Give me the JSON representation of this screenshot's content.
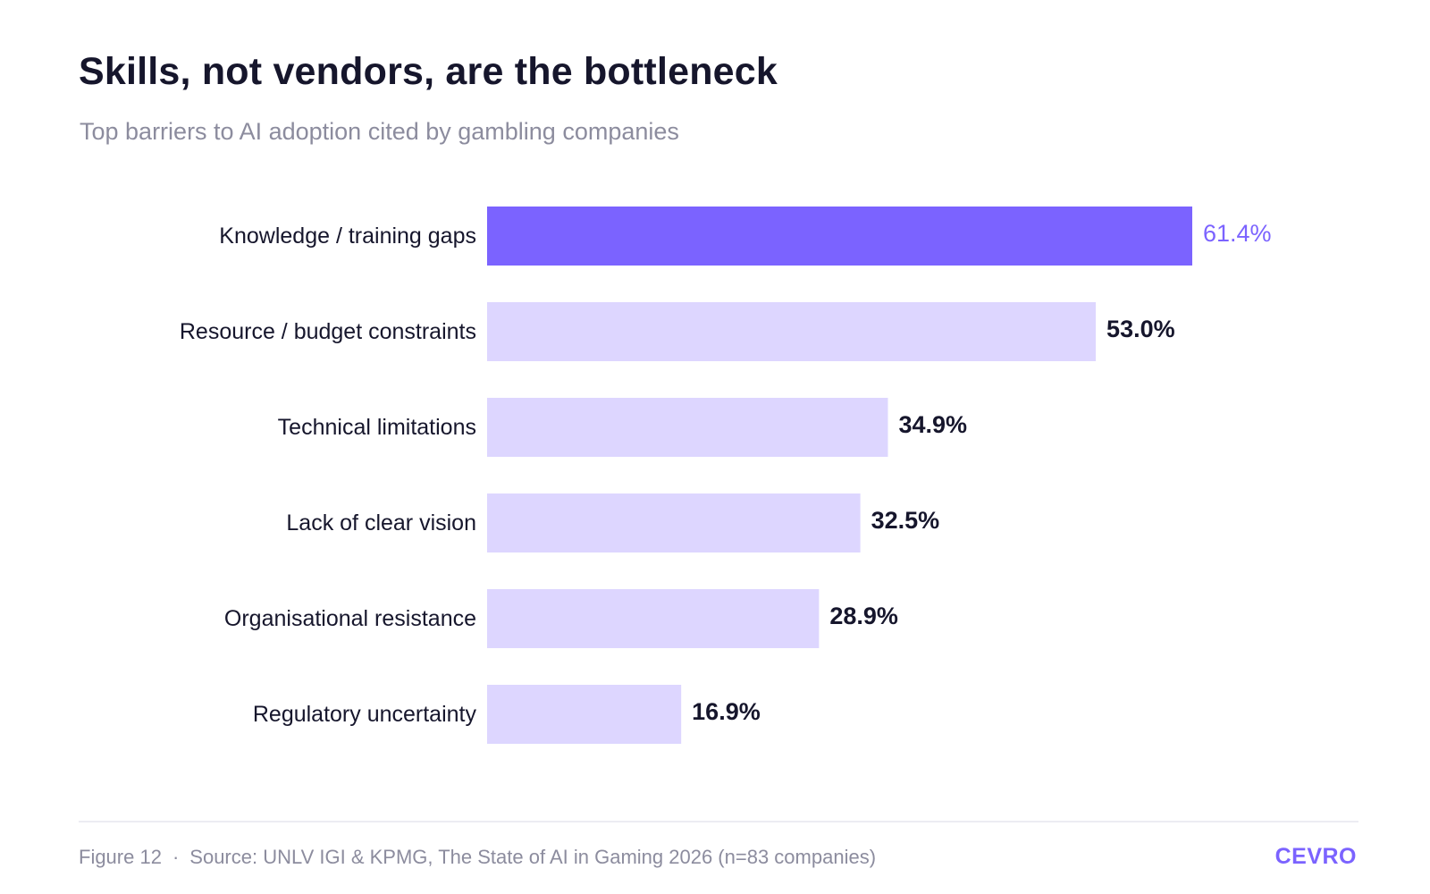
{
  "header": {
    "title": "Skills, not vendors, are the bottleneck",
    "subtitle": "Top barriers to AI adoption cited by gambling companies"
  },
  "footer": {
    "figure": "Figure 12",
    "separator": "·",
    "source": "Source: UNLV IGI & KPMG, The State of AI in Gaming 2026 (n=83 companies)",
    "brand": "CEVRO"
  },
  "colors": {
    "highlight_bar": "#7b63ff",
    "bar": "#ddd6ff",
    "highlight_label": "#7b63ff",
    "label": "#16162c"
  },
  "chart_data": {
    "type": "bar",
    "orientation": "horizontal",
    "title": "Skills, not vendors, are the bottleneck",
    "subtitle": "Top barriers to AI adoption cited by gambling companies",
    "categories": [
      "Knowledge / training gaps",
      "Resource / budget constraints",
      "Technical limitations",
      "Lack of clear vision",
      "Organisational resistance",
      "Regulatory uncertainty"
    ],
    "values": [
      61.4,
      53.0,
      34.9,
      32.5,
      28.9,
      16.9
    ],
    "value_labels": [
      "61.4%",
      "53.0%",
      "34.9%",
      "32.5%",
      "28.9%",
      "16.9%"
    ],
    "unit": "%",
    "highlight_index": 0,
    "xlim": [
      0,
      100
    ],
    "grid": false,
    "legend": "none"
  }
}
